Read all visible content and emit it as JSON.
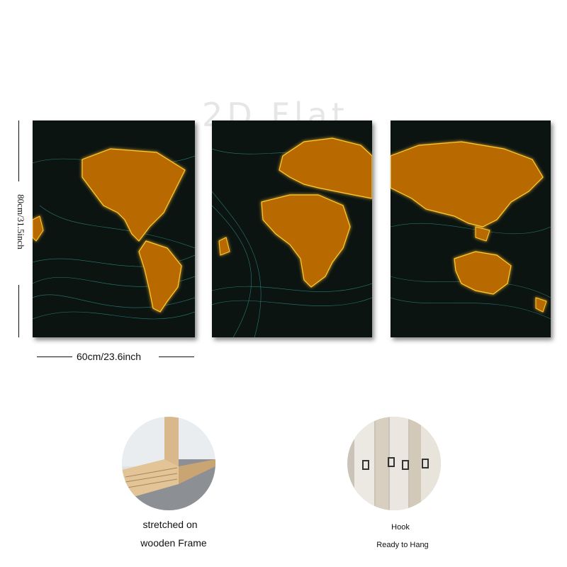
{
  "watermark": "2D Flat",
  "dimensions": {
    "height_label": "80cm/31.5inch",
    "width_label": "60cm/23.6inch"
  },
  "features": [
    {
      "label_line1": "stretched on",
      "label_line2": "wooden Frame"
    },
    {
      "label_line1": "Hook",
      "label_line2": "Ready to Hang"
    }
  ],
  "colors": {
    "map_glow": "#ffb300",
    "network_lines": "#3fd0c0",
    "panel_bg": "#0c1412"
  },
  "icons": [
    "world-map-panel-americas",
    "world-map-panel-europe-africa",
    "world-map-panel-asia-australia",
    "wooden-frame-photo",
    "hook-photo"
  ]
}
